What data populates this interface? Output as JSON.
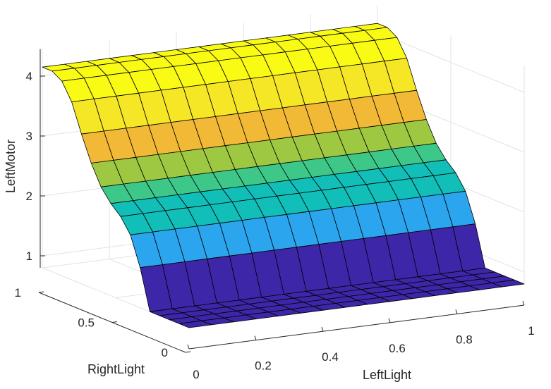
{
  "chart_data": {
    "type": "surface",
    "xlabel": "LeftLight",
    "ylabel": "RightLight",
    "zlabel": "LeftMotor",
    "xlim": [
      0,
      1
    ],
    "ylim": [
      0,
      1
    ],
    "zlim": [
      0.8,
      4.2
    ],
    "x_ticks": [
      0,
      0.2,
      0.4,
      0.6,
      0.8,
      1
    ],
    "y_ticks": [
      0,
      0.5,
      1
    ],
    "z_ticks": [
      1,
      2,
      3,
      4
    ],
    "x_tick_labels": [
      "0",
      "0.2",
      "0.4",
      "0.6",
      "0.8",
      "1"
    ],
    "y_tick_labels": [
      "0",
      "0.5",
      "1"
    ],
    "z_tick_labels": [
      "1",
      "2",
      "3",
      "4"
    ],
    "grid": true,
    "colormap": [
      "#3e26a8",
      "#4772fa",
      "#2ba5ed",
      "#11beb8",
      "#3dc889",
      "#9ec842",
      "#f1b935",
      "#f5e626",
      "#f9fb15"
    ],
    "surface_x": [
      0.0,
      0.0667,
      0.1333,
      0.2,
      0.2667,
      0.3333,
      0.4,
      0.4667,
      0.5333,
      0.6,
      0.6667,
      0.7333,
      0.8,
      0.8667,
      0.9333,
      1.0
    ],
    "surface_y": [
      0.0,
      0.0667,
      0.1333,
      0.2,
      0.2667,
      0.3333,
      0.4,
      0.4667,
      0.5333,
      0.6,
      0.6667,
      0.7333,
      0.8,
      0.8667,
      0.9333,
      1.0
    ],
    "z_profile_over_RightLight": [
      0.8,
      0.8,
      0.8,
      0.8,
      0.8,
      1.47,
      1.95,
      2.19,
      2.34,
      2.55,
      2.88,
      3.3,
      3.77,
      4.05,
      4.15,
      4.15
    ],
    "z_profile_over_LeftLight": [
      0.0,
      0.0,
      0.0,
      0.0,
      0.0,
      0.0,
      0.0,
      0.0,
      0.0,
      0.0,
      0.0,
      0.0,
      0.0,
      0.0,
      0.0,
      0.0
    ]
  }
}
